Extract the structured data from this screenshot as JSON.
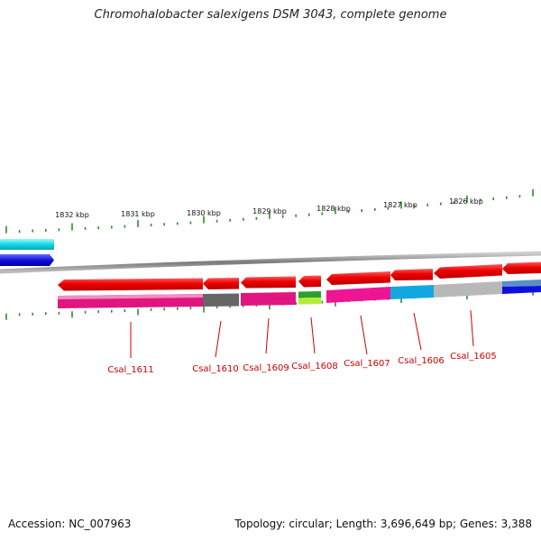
{
  "title": "Chromohalobacter salexigens DSM 3043, complete genome",
  "footer": {
    "accession": "Accession: NC_007963",
    "summary": "Topology: circular; Length: 3,696,649 bp; Genes: 3,388"
  },
  "scale_ticks": [
    "1832 kbp",
    "1831 kbp",
    "1830 kbp",
    "1829 kbp",
    "1828 kbp",
    "1827 kbp",
    "1826 kbp"
  ],
  "genes": [
    {
      "label": "Csal_1611",
      "strand": "-",
      "cog_color": "#e0157f"
    },
    {
      "label": "Csal_1610",
      "strand": "-",
      "cog_color": "#666666"
    },
    {
      "label": "Csal_1609",
      "strand": "-",
      "cog_color": "#e0157f"
    },
    {
      "label": "Csal_1608",
      "strand": "-",
      "cog_color": "#5cb82e"
    },
    {
      "label": "Csal_1607",
      "strand": "-",
      "cog_color": "#ee1593"
    },
    {
      "label": "Csal_1606",
      "strand": "-",
      "cog_color": "#14a8e0"
    },
    {
      "label": "Csal_1605",
      "strand": "-",
      "cog_color": "#b8b8b8"
    }
  ],
  "colors": {
    "cds": "#ee0000",
    "backbone": "#888888",
    "tick": "#2e8b2e",
    "label": "#cc0000",
    "plus_feature_1": "#11d8e8",
    "plus_feature_2": "#1010dd"
  }
}
